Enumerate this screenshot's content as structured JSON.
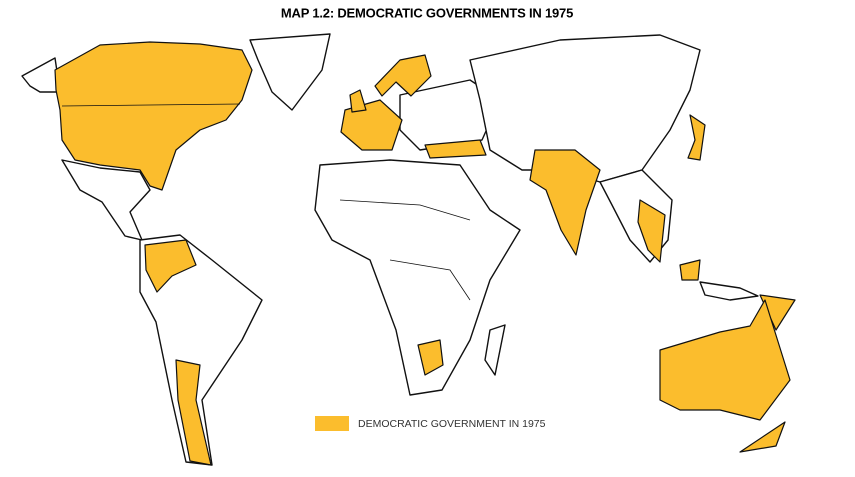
{
  "title": "MAP 1.2: DEMOCRATIC GOVERNMENTS IN 1975",
  "legend": {
    "label": "DEMOCRATIC GOVERNMENT IN 1975"
  }
}
